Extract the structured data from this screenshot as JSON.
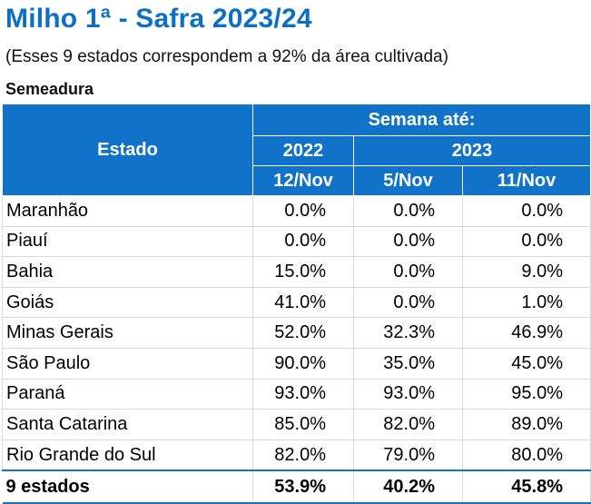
{
  "title": "Milho 1ª - Safra 2023/24",
  "subtitle": "(Esses 9 estados correspondem a 92% da área cultivada)",
  "section": "Semeadura",
  "header": {
    "estado": "Estado",
    "semana": "Semana até:",
    "year_2022": "2022",
    "year_2023": "2023",
    "col_1": "12/Nov",
    "col_2": "5/Nov",
    "col_3": "11/Nov"
  },
  "rows": [
    {
      "estado": "Maranhão",
      "v2022": "0.0%",
      "v5nov": "0.0%",
      "v11nov": "0.0%"
    },
    {
      "estado": "Piauí",
      "v2022": "0.0%",
      "v5nov": "0.0%",
      "v11nov": "0.0%"
    },
    {
      "estado": "Bahia",
      "v2022": "15.0%",
      "v5nov": "0.0%",
      "v11nov": "9.0%"
    },
    {
      "estado": "Goiás",
      "v2022": "41.0%",
      "v5nov": "0.0%",
      "v11nov": "1.0%"
    },
    {
      "estado": "Minas Gerais",
      "v2022": "52.0%",
      "v5nov": "32.3%",
      "v11nov": "46.9%"
    },
    {
      "estado": "São Paulo",
      "v2022": "90.0%",
      "v5nov": "35.0%",
      "v11nov": "45.0%"
    },
    {
      "estado": "Paraná",
      "v2022": "93.0%",
      "v5nov": "93.0%",
      "v11nov": "95.0%"
    },
    {
      "estado": "Santa Catarina",
      "v2022": "85.0%",
      "v5nov": "82.0%",
      "v11nov": "89.0%"
    },
    {
      "estado": "Rio Grande do Sul",
      "v2022": "82.0%",
      "v5nov": "79.0%",
      "v11nov": "80.0%"
    }
  ],
  "total": {
    "estado": "9 estados",
    "v2022": "53.9%",
    "v5nov": "40.2%",
    "v11nov": "45.8%"
  },
  "colors": {
    "accent": "#1072c9",
    "title": "#0b70c4",
    "grid": "#d9d9d9"
  }
}
